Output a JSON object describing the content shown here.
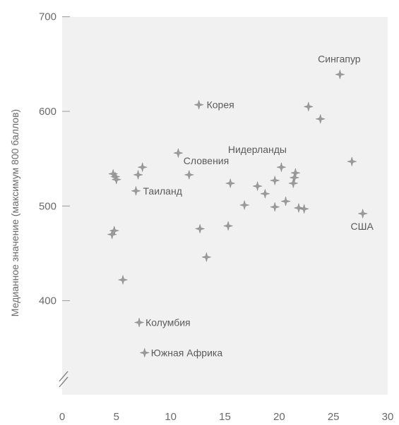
{
  "chart_data": {
    "type": "scatter",
    "title": "",
    "xlabel": "",
    "ylabel": "Медианное значение (максимум 800 баллов)",
    "xlim": [
      0,
      30
    ],
    "ylim": [
      310,
      700
    ],
    "x_ticks": [
      "0",
      "5",
      "10",
      "15",
      "20",
      "25",
      "30"
    ],
    "y_ticks": [
      "400",
      "500",
      "600",
      "700"
    ],
    "grid": false,
    "axis_break": true,
    "colors": {
      "plot_background": "#f1f1f1",
      "marker": "#9a9a9a",
      "text": "#5a5a5a"
    },
    "points": [
      {
        "x": 25.6,
        "y": 639,
        "label": "Сингапур"
      },
      {
        "x": 12.6,
        "y": 607,
        "label": "Корея"
      },
      {
        "x": 22.7,
        "y": 605,
        "label": ""
      },
      {
        "x": 23.8,
        "y": 592,
        "label": ""
      },
      {
        "x": 10.7,
        "y": 556,
        "label": ""
      },
      {
        "x": 26.7,
        "y": 547,
        "label": ""
      },
      {
        "x": 20.2,
        "y": 541,
        "label": "Нидерланды"
      },
      {
        "x": 7.4,
        "y": 541,
        "label": ""
      },
      {
        "x": 4.7,
        "y": 534,
        "label": ""
      },
      {
        "x": 4.9,
        "y": 531,
        "label": ""
      },
      {
        "x": 5.0,
        "y": 528,
        "label": ""
      },
      {
        "x": 7.0,
        "y": 533,
        "label": ""
      },
      {
        "x": 11.7,
        "y": 533,
        "label": "Словения"
      },
      {
        "x": 21.5,
        "y": 535,
        "label": ""
      },
      {
        "x": 21.4,
        "y": 530,
        "label": ""
      },
      {
        "x": 19.6,
        "y": 527,
        "label": ""
      },
      {
        "x": 21.3,
        "y": 524,
        "label": ""
      },
      {
        "x": 15.5,
        "y": 524,
        "label": ""
      },
      {
        "x": 18.0,
        "y": 521,
        "label": ""
      },
      {
        "x": 6.8,
        "y": 516,
        "label": "Таиланд"
      },
      {
        "x": 18.7,
        "y": 513,
        "label": ""
      },
      {
        "x": 20.6,
        "y": 505,
        "label": ""
      },
      {
        "x": 16.8,
        "y": 501,
        "label": ""
      },
      {
        "x": 19.6,
        "y": 499,
        "label": ""
      },
      {
        "x": 21.8,
        "y": 498,
        "label": ""
      },
      {
        "x": 22.3,
        "y": 497,
        "label": ""
      },
      {
        "x": 27.7,
        "y": 492,
        "label": "США"
      },
      {
        "x": 15.3,
        "y": 479,
        "label": ""
      },
      {
        "x": 12.7,
        "y": 476,
        "label": ""
      },
      {
        "x": 4.8,
        "y": 474,
        "label": ""
      },
      {
        "x": 4.6,
        "y": 470,
        "label": ""
      },
      {
        "x": 13.3,
        "y": 446,
        "label": ""
      },
      {
        "x": 5.6,
        "y": 422,
        "label": ""
      },
      {
        "x": 7.1,
        "y": 377,
        "label": "Колумбия"
      },
      {
        "x": 7.6,
        "y": 345,
        "label": "Южная Африка"
      }
    ]
  }
}
